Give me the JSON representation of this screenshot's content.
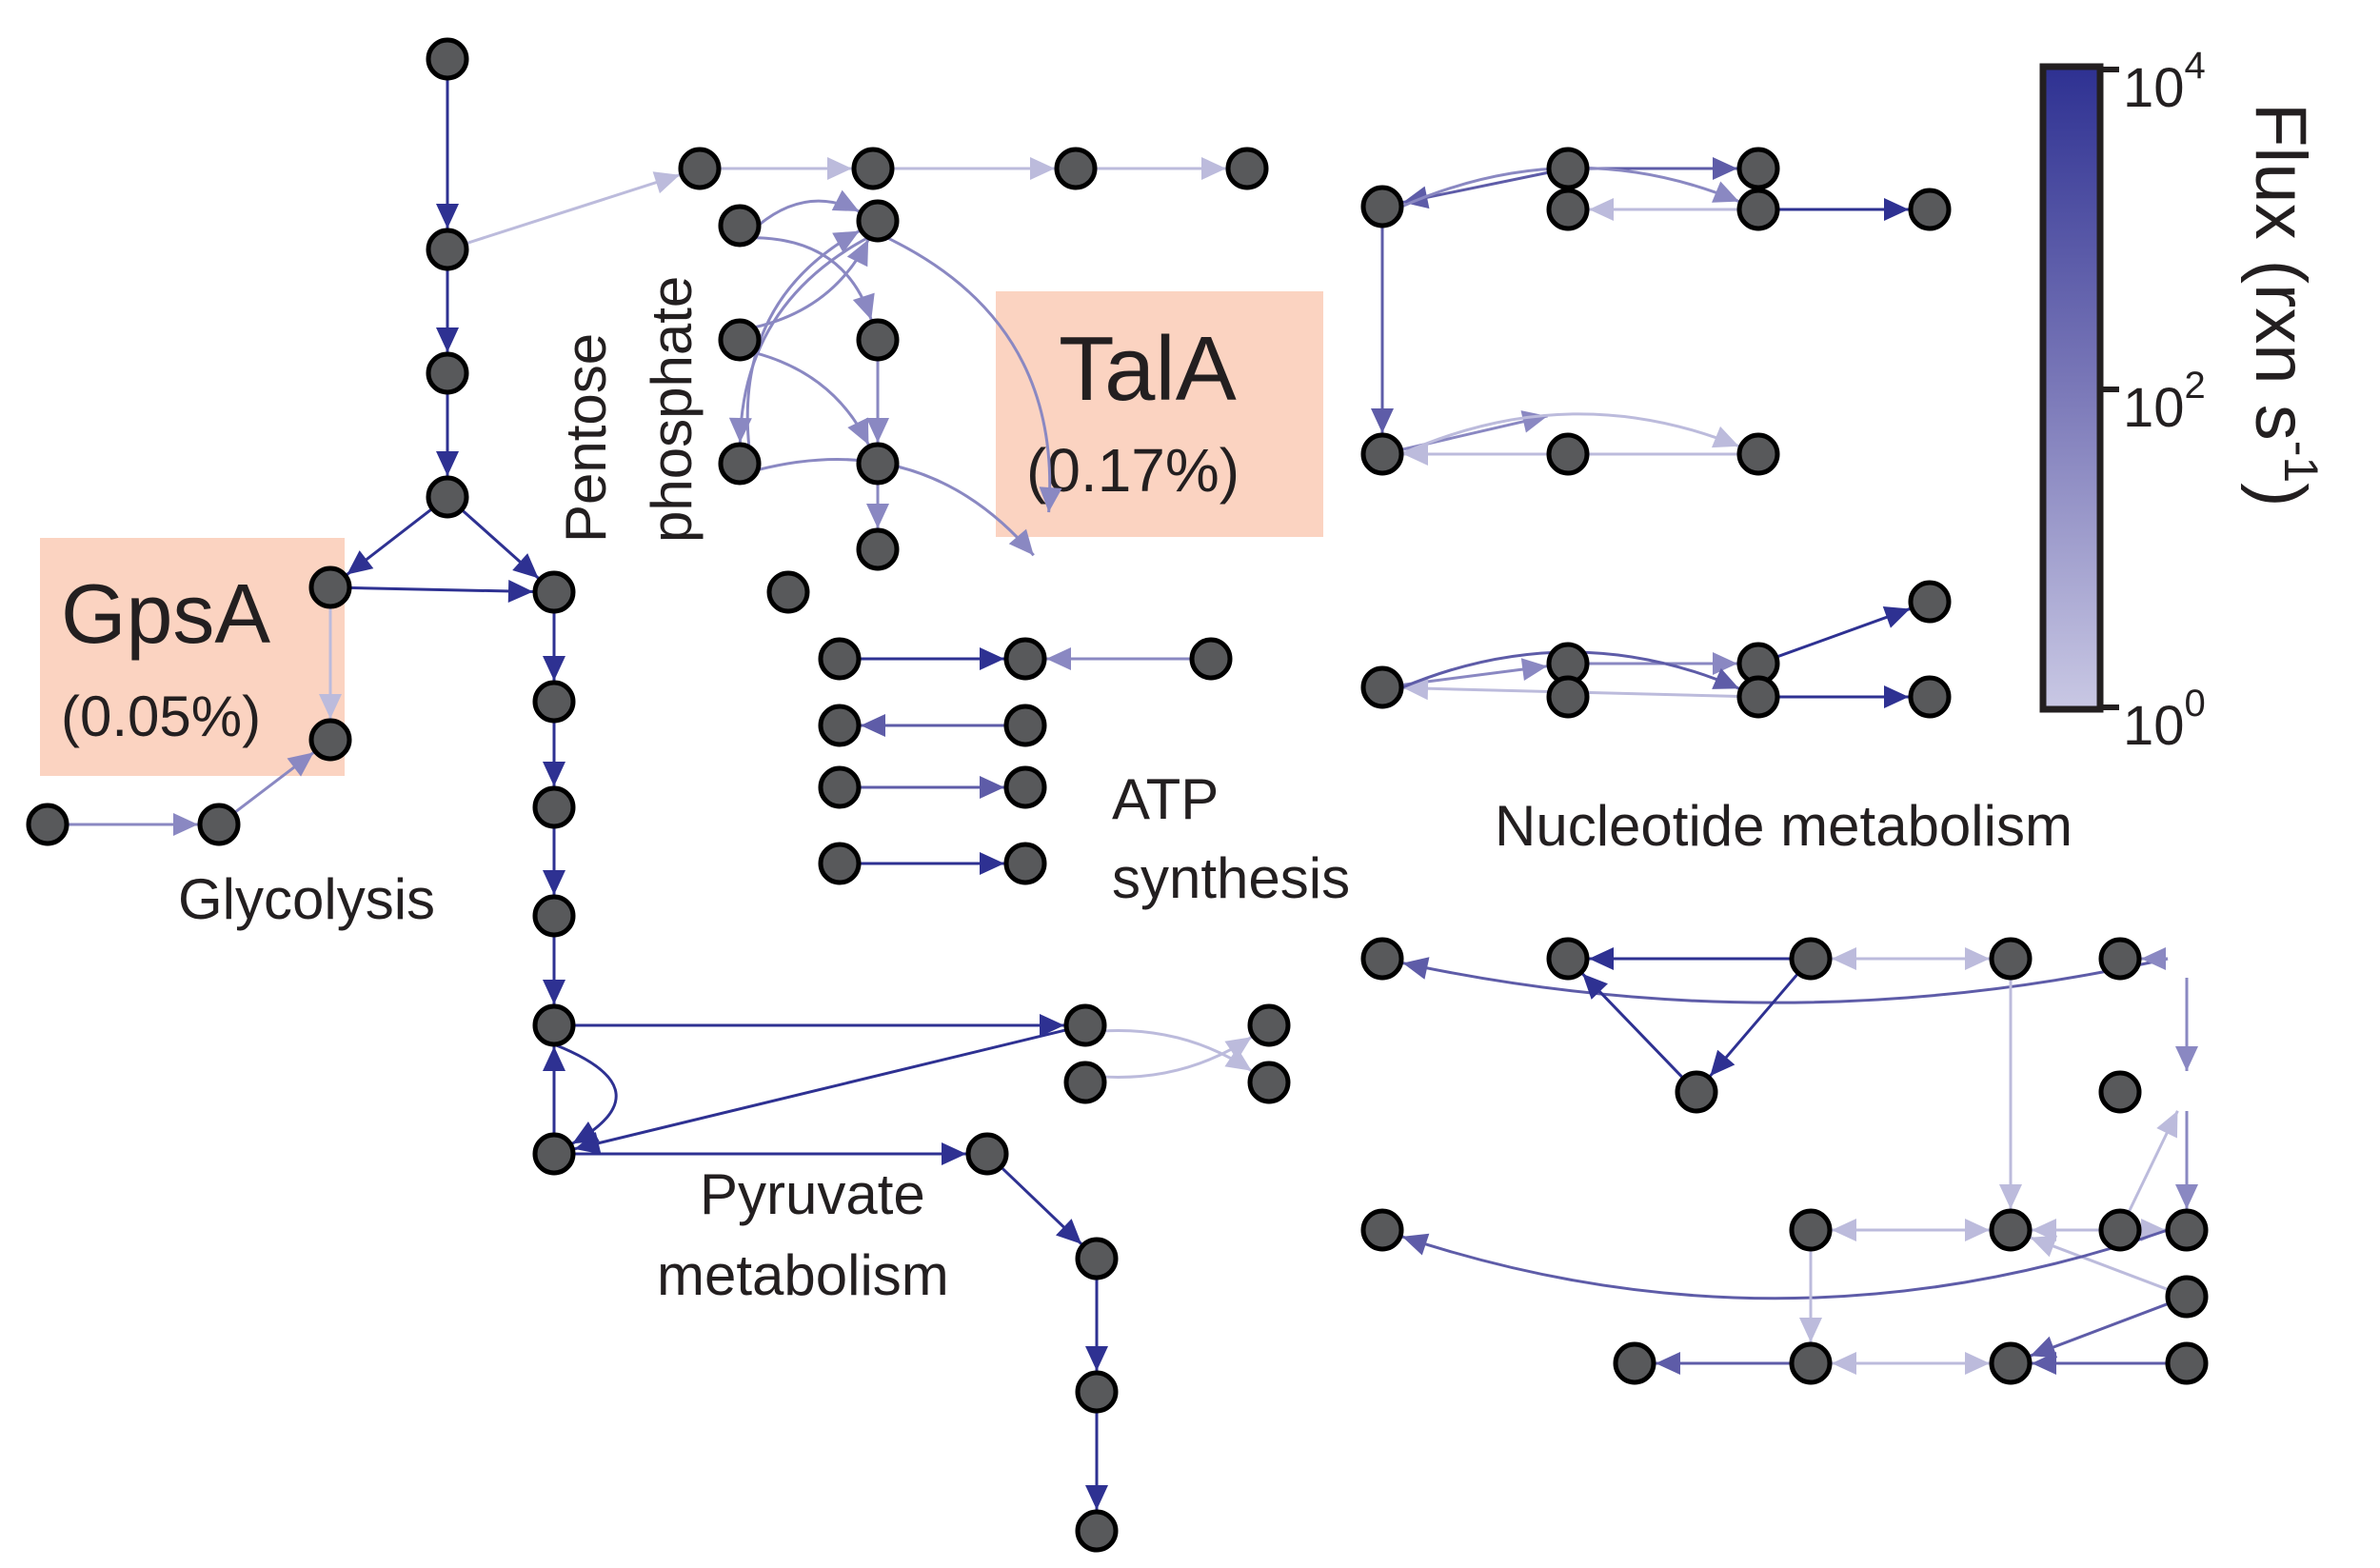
{
  "labels": {
    "glycolysis": "Glycolysis",
    "pentose": "Pentose",
    "phosphate": "phosphate",
    "atp_line1": "ATP",
    "atp_line2": "synthesis",
    "pyruvate_line1": "Pyruvate",
    "pyruvate_line2": "metabolism",
    "nucleotide": "Nucleotide metabolism"
  },
  "highlights": {
    "gpsa": {
      "name": "GpsA",
      "percent": "(0.05%)",
      "color": "#fbd3c1"
    },
    "tala": {
      "name": "TalA",
      "percent": "(0.17%)",
      "color": "#fbd3c1"
    }
  },
  "colorbar": {
    "title": "Flux (rxn s",
    "title_sup": "-1",
    "title_close": ")",
    "ticks": [
      {
        "base": "10",
        "exp": "4"
      },
      {
        "base": "10",
        "exp": "2"
      },
      {
        "base": "10",
        "exp": "0"
      }
    ],
    "color_high": "#2e3192",
    "color_low": "#c9c8e4"
  },
  "icons": {
    "node": "metabolite-node-circle",
    "edge": "reaction-arrow"
  }
}
